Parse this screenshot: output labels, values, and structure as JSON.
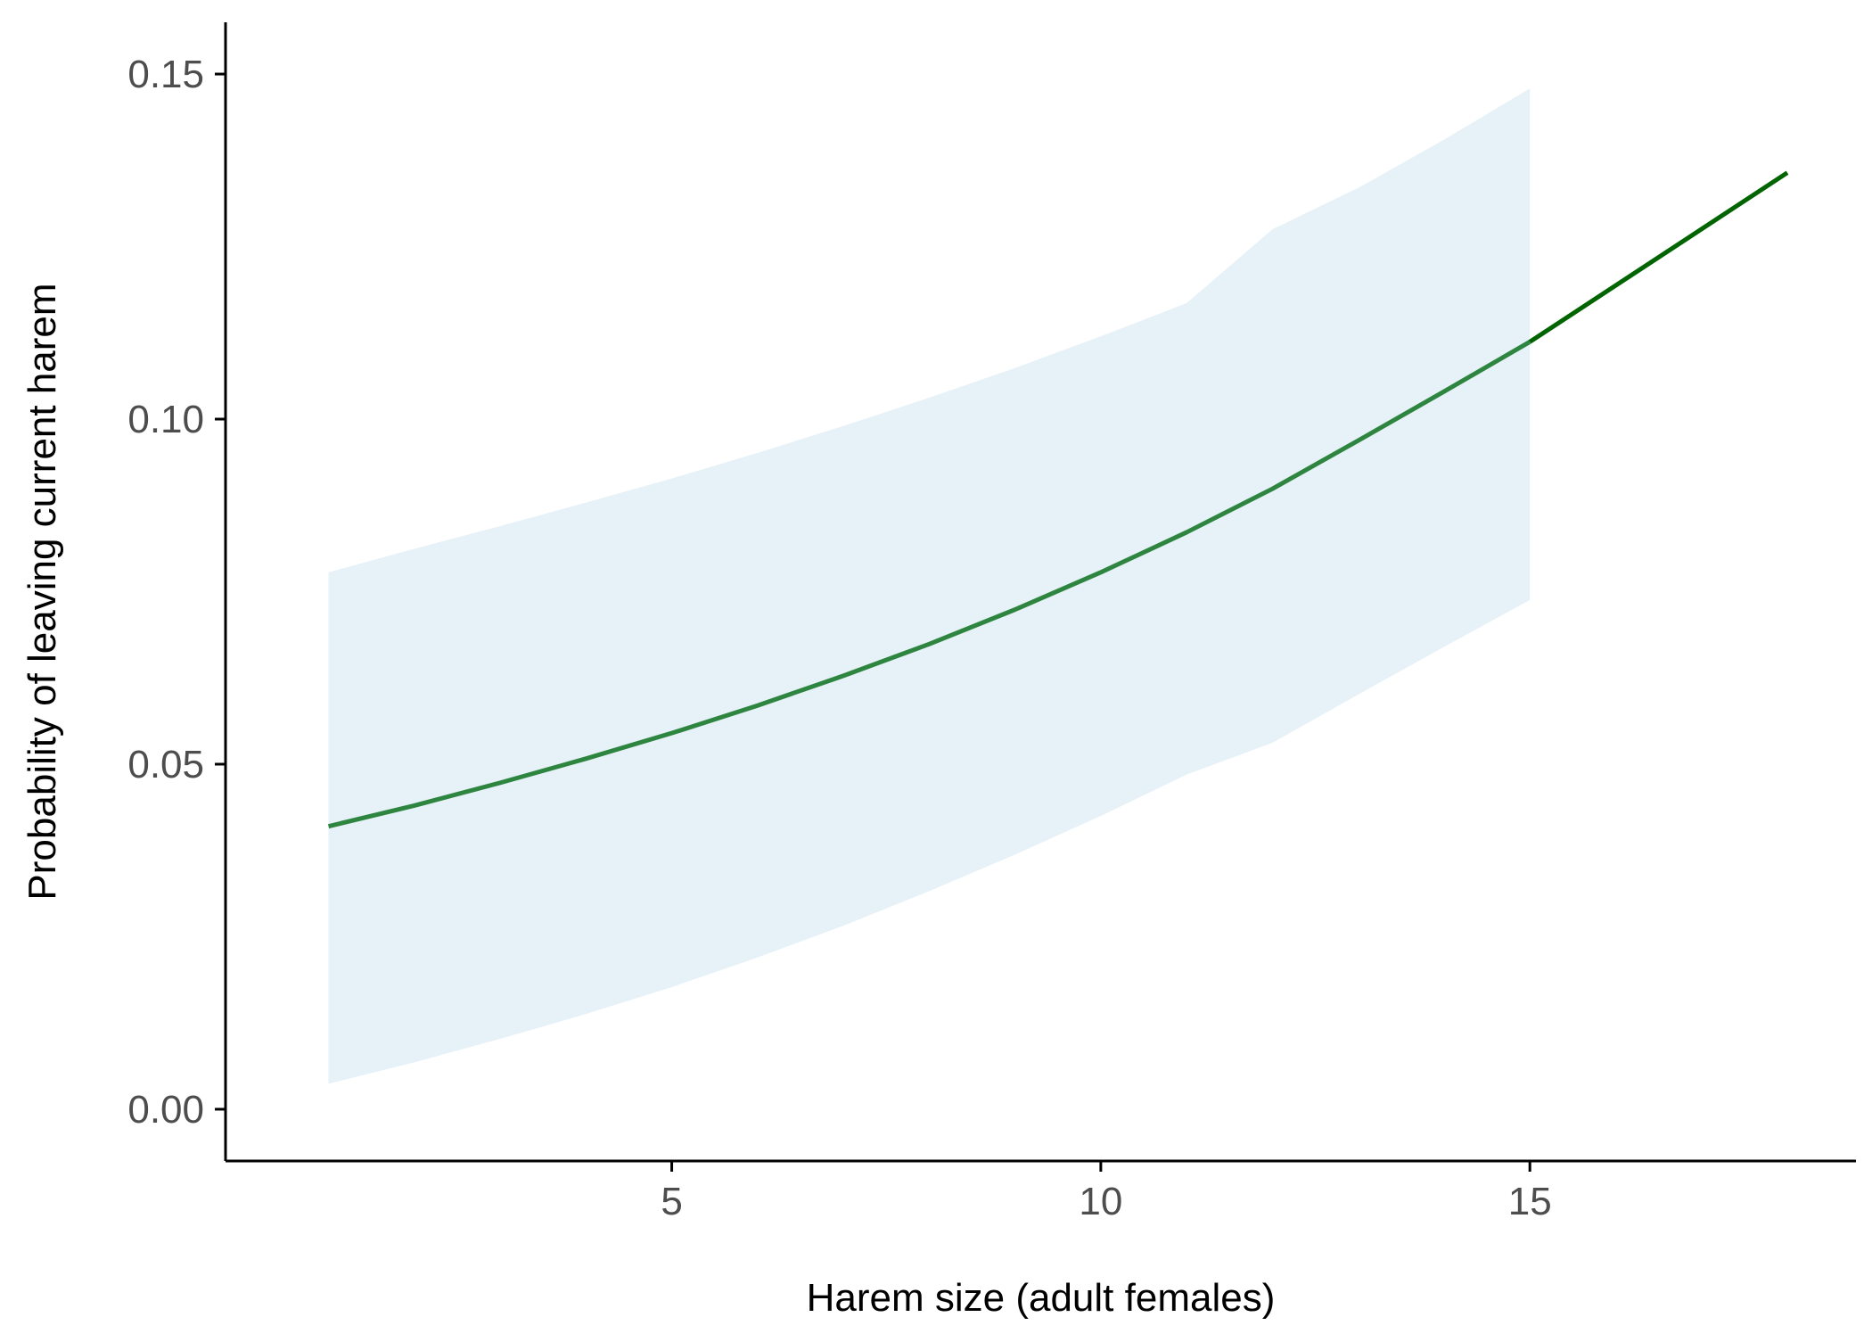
{
  "chart_data": {
    "type": "line",
    "title": "",
    "xlabel": "Harem size (adult females)",
    "ylabel": "Probability of leaving current harem",
    "xlim": [
      -0.2,
      18.8
    ],
    "ylim": [
      -0.0075,
      0.1575
    ],
    "x_ticks": [
      5,
      10,
      15
    ],
    "x_tick_labels": [
      "5",
      "10",
      "15"
    ],
    "y_ticks": [
      0.0,
      0.05,
      0.1,
      0.15
    ],
    "y_tick_labels": [
      "0.00",
      "0.05",
      "0.10",
      "0.15"
    ],
    "grid": false,
    "legend": "none",
    "series": [
      {
        "x": [
          1,
          2,
          3,
          4,
          5,
          6,
          7,
          8,
          9,
          10,
          11,
          12,
          13,
          14,
          15
        ],
        "y": [
          0.041,
          0.044,
          0.0473,
          0.0508,
          0.0545,
          0.0585,
          0.0628,
          0.0674,
          0.0724,
          0.0778,
          0.0836,
          0.0899,
          0.0969,
          0.104,
          0.1112
        ],
        "ci_lower": [
          0.0037,
          0.0068,
          0.0102,
          0.0138,
          0.0177,
          0.022,
          0.0266,
          0.0316,
          0.0369,
          0.0425,
          0.0485,
          0.0531,
          0.0601,
          0.067,
          0.0738
        ],
        "ci_upper": [
          0.0778,
          0.0812,
          0.0845,
          0.0879,
          0.0914,
          0.0951,
          0.099,
          0.1031,
          0.1074,
          0.112,
          0.1168,
          0.1275,
          0.1335,
          0.1405,
          0.1479
        ]
      },
      {
        "x": [
          15,
          18
        ],
        "y": [
          0.1112,
          0.1357
        ]
      }
    ],
    "colors": {
      "ribbon": "#e6f1f8",
      "line_main": "#2e8540",
      "line_extension": "#006400",
      "axis": "#000000",
      "tick_text": "#4d4d4d"
    }
  }
}
